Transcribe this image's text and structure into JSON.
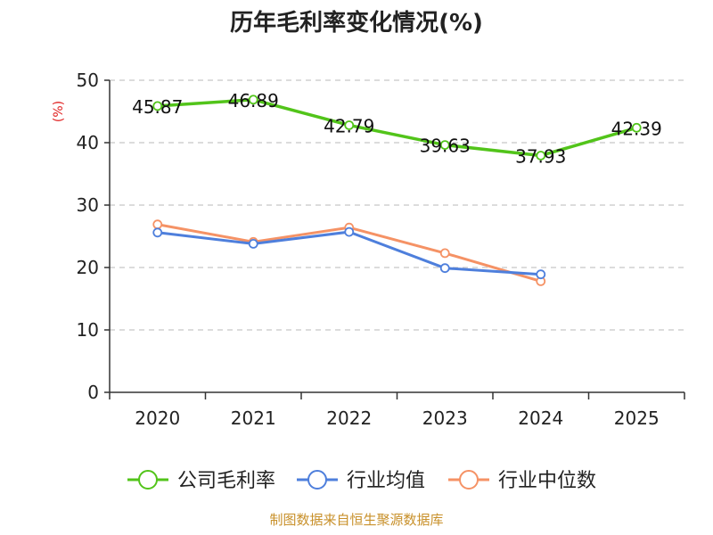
{
  "chart_data": {
    "type": "line",
    "title": "历年毛利率变化情况(%)",
    "unit_label": "(%)",
    "categories": [
      "2020",
      "2021",
      "2022",
      "2023",
      "2024",
      "2025"
    ],
    "ylim": [
      0,
      50
    ],
    "yticks": [
      0,
      10,
      20,
      30,
      40,
      50
    ],
    "grid": true,
    "legend_position": "bottom",
    "series": [
      {
        "name": "公司毛利率",
        "color": "#52c41a",
        "values": [
          45.87,
          46.89,
          42.79,
          39.63,
          37.93,
          42.39
        ],
        "labels": [
          "45.87",
          "46.89",
          "42.79",
          "39.63",
          "37.93",
          "42.39"
        ]
      },
      {
        "name": "行业均值",
        "color": "#4e7fdc",
        "values": [
          25.6,
          23.8,
          25.7,
          19.9,
          18.9,
          null
        ]
      },
      {
        "name": "行业中位数",
        "color": "#f59265",
        "values": [
          26.9,
          24.1,
          26.4,
          22.3,
          17.8,
          null
        ]
      }
    ]
  },
  "source_text": "制图数据来自恒生聚源数据库"
}
